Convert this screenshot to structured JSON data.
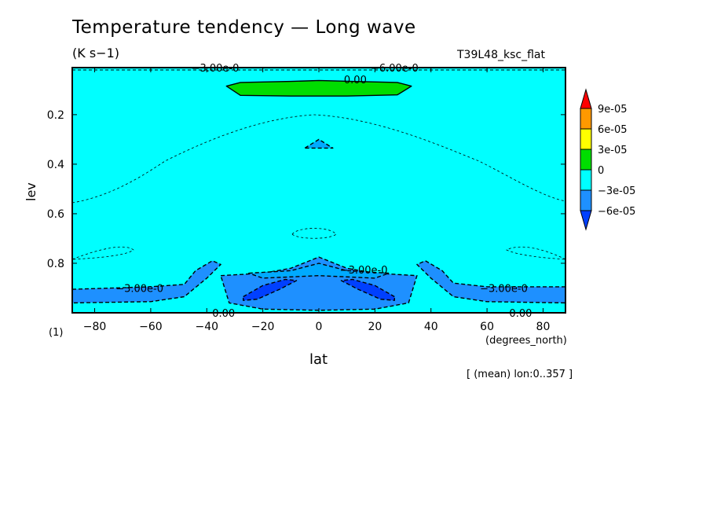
{
  "title": "Temperature tendency — Long wave",
  "units": "(K s−1)",
  "run_label": "T39L48_ksc_flat",
  "bottom_level_label": "(1)",
  "x_units": "(degrees_north)",
  "note": "[ (mean) lon:0..357 ]",
  "chart_data": {
    "type": "heatmap",
    "title": "Temperature tendency — Long wave",
    "xlabel": "lat",
    "ylabel": "lev",
    "xlim": [
      -88,
      88
    ],
    "ylim": [
      1.0,
      0.01
    ],
    "x_ticks": [
      -80,
      -60,
      -40,
      -20,
      0,
      20,
      40,
      60,
      80
    ],
    "x_tick_labels": [
      "−80",
      "−60",
      "−40",
      "−20",
      "0",
      "20",
      "40",
      "60",
      "80"
    ],
    "y_ticks": [
      0.2,
      0.4,
      0.6,
      0.8
    ],
    "y_tick_labels": [
      "0.2",
      "0.4",
      "0.6",
      "0.8"
    ],
    "colorbar": {
      "labels": [
        "9e-05",
        "6e-05",
        "3e-05",
        "0",
        "−3e-05",
        "−6e-05"
      ],
      "colors": [
        "#ff0000",
        "#ff9900",
        "#ffff00",
        "#00dd00",
        "#00ffff",
        "#1e90ff",
        "#0040ff"
      ]
    },
    "background_level_color": "#00ffff",
    "regions": [
      {
        "name": "positive-0-3e-05",
        "color": "#00dd00",
        "points": [
          [
            -33,
            0.085
          ],
          [
            -28,
            0.07
          ],
          [
            -10,
            0.066
          ],
          [
            0,
            0.062
          ],
          [
            12,
            0.066
          ],
          [
            28,
            0.07
          ],
          [
            33,
            0.085
          ],
          [
            28,
            0.12
          ],
          [
            10,
            0.125
          ],
          [
            -10,
            0.125
          ],
          [
            -28,
            0.122
          ]
        ]
      },
      {
        "name": "neg-3e-05-left-ridge",
        "color": "#1e90ff",
        "points": [
          [
            -88,
            0.905
          ],
          [
            -60,
            0.895
          ],
          [
            -48,
            0.885
          ],
          [
            -44,
            0.83
          ],
          [
            -38,
            0.79
          ],
          [
            -35,
            0.805
          ],
          [
            -40,
            0.86
          ],
          [
            -48,
            0.935
          ],
          [
            -60,
            0.955
          ],
          [
            -88,
            0.96
          ]
        ]
      },
      {
        "name": "neg-3e-05-right-ridge",
        "color": "#1e90ff",
        "points": [
          [
            88,
            0.895
          ],
          [
            60,
            0.895
          ],
          [
            48,
            0.88
          ],
          [
            44,
            0.83
          ],
          [
            38,
            0.79
          ],
          [
            35,
            0.805
          ],
          [
            40,
            0.86
          ],
          [
            48,
            0.935
          ],
          [
            60,
            0.955
          ],
          [
            88,
            0.96
          ]
        ]
      },
      {
        "name": "neg-3e-05-center",
        "color": "#1e90ff",
        "points": [
          [
            -35,
            0.85
          ],
          [
            -20,
            0.84
          ],
          [
            -10,
            0.82
          ],
          [
            0,
            0.775
          ],
          [
            10,
            0.82
          ],
          [
            20,
            0.84
          ],
          [
            35,
            0.85
          ],
          [
            32,
            0.96
          ],
          [
            20,
            0.985
          ],
          [
            0,
            0.99
          ],
          [
            -20,
            0.985
          ],
          [
            -32,
            0.96
          ]
        ]
      },
      {
        "name": "neg-3e-05-center-upper",
        "color": "#00aaff",
        "points": [
          [
            -25,
            0.84
          ],
          [
            -10,
            0.83
          ],
          [
            0,
            0.8
          ],
          [
            10,
            0.83
          ],
          [
            25,
            0.84
          ],
          [
            20,
            0.86
          ],
          [
            0,
            0.85
          ],
          [
            -20,
            0.86
          ]
        ]
      },
      {
        "name": "neg-6e-05-left",
        "color": "#0040ff",
        "points": [
          [
            -27,
            0.935
          ],
          [
            -20,
            0.89
          ],
          [
            -12,
            0.865
          ],
          [
            -8,
            0.87
          ],
          [
            -14,
            0.905
          ],
          [
            -22,
            0.945
          ],
          [
            -27,
            0.95
          ]
        ]
      },
      {
        "name": "neg-6e-05-right",
        "color": "#0040ff",
        "points": [
          [
            27,
            0.935
          ],
          [
            20,
            0.89
          ],
          [
            12,
            0.865
          ],
          [
            8,
            0.87
          ],
          [
            14,
            0.905
          ],
          [
            22,
            0.945
          ],
          [
            27,
            0.95
          ]
        ]
      },
      {
        "name": "neg-3e-05-small-tongue",
        "color": "#00aaff",
        "points": [
          [
            -5,
            0.335
          ],
          [
            0,
            0.3
          ],
          [
            5,
            0.335
          ]
        ]
      }
    ],
    "contour_labels": [
      {
        "text": "−3.00e-0",
        "x": -37,
        "y": 0.01
      },
      {
        "text": "−6.00e-0",
        "x": 27,
        "y": 0.01
      },
      {
        "text": "0.00",
        "x": 13,
        "y": 0.058
      },
      {
        "text": "−3.00e-0",
        "x": 16,
        "y": 0.825
      },
      {
        "text": "−3.00e-0",
        "x": -64,
        "y": 0.9
      },
      {
        "text": "−3.00e-0",
        "x": 66,
        "y": 0.9
      },
      {
        "text": "0.00",
        "x": -34,
        "y": 1.0
      },
      {
        "text": "0.00",
        "x": 72,
        "y": 1.0
      }
    ]
  }
}
